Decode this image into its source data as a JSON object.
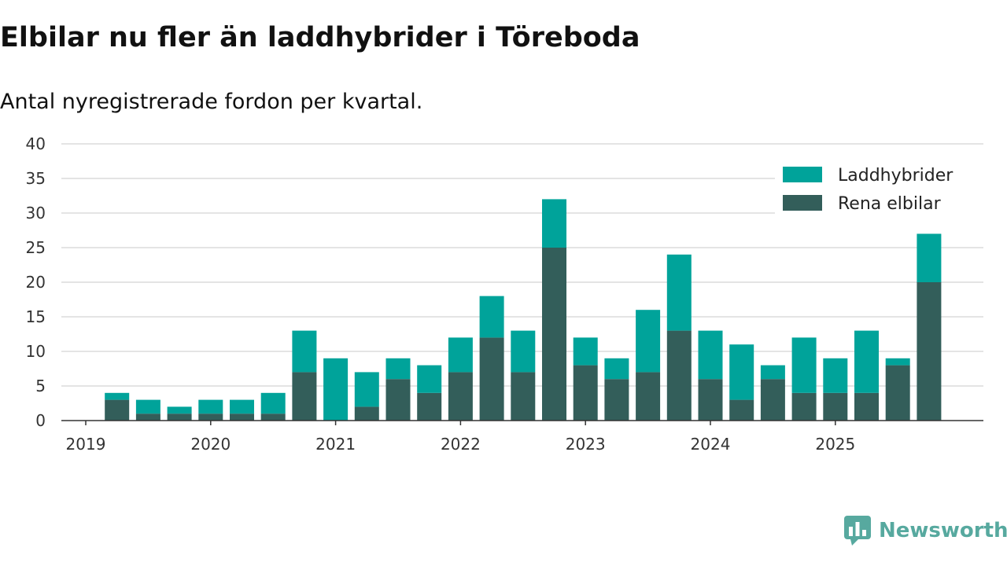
{
  "header": {
    "title": "Elbilar nu fler än laddhybrider i Töreboda",
    "subtitle": "Antal nyregistrerade fordon per kvartal."
  },
  "brand": {
    "name": "Newsworthy",
    "color": "#57a99f",
    "icon": "newsworthy-chart-bubble-icon"
  },
  "chart_data": {
    "type": "bar",
    "stacked": true,
    "title": "Elbilar nu fler än laddhybrider i Töreboda",
    "subtitle": "Antal nyregistrerade fordon per kvartal.",
    "xlabel": "",
    "ylabel": "",
    "ylim": [
      0,
      40
    ],
    "yticks": [
      0,
      5,
      10,
      15,
      20,
      25,
      30,
      35,
      40
    ],
    "grid": true,
    "legend_position": "top-right",
    "x_tick_labels": [
      "2019",
      "2020",
      "2021",
      "2022",
      "2023",
      "2024",
      "2025"
    ],
    "categories": [
      "2019 Q1",
      "2019 Q2",
      "2019 Q3",
      "2019 Q4",
      "2020 Q1",
      "2020 Q2",
      "2020 Q3",
      "2020 Q4",
      "2021 Q1",
      "2021 Q2",
      "2021 Q3",
      "2021 Q4",
      "2022 Q1",
      "2022 Q2",
      "2022 Q3",
      "2022 Q4",
      "2023 Q1",
      "2023 Q2",
      "2023 Q3",
      "2023 Q4",
      "2024 Q1",
      "2024 Q2",
      "2024 Q3",
      "2024 Q4",
      "2025 Q1",
      "2025 Q2",
      "2025 Q3",
      "2025 Q4"
    ],
    "series": [
      {
        "name": "Rena elbilar",
        "color": "#335e5a",
        "values": [
          0,
          3,
          1,
          1,
          1,
          1,
          1,
          7,
          0,
          2,
          6,
          4,
          7,
          12,
          7,
          25,
          8,
          6,
          7,
          13,
          6,
          3,
          6,
          4,
          4,
          4,
          8,
          20
        ]
      },
      {
        "name": "Laddhybrider",
        "color": "#00a39a",
        "values": [
          0,
          1,
          2,
          1,
          2,
          2,
          3,
          6,
          9,
          5,
          3,
          4,
          5,
          6,
          6,
          7,
          4,
          3,
          9,
          11,
          7,
          8,
          2,
          8,
          5,
          9,
          1,
          7
        ]
      }
    ],
    "legend_order": [
      "Laddhybrider",
      "Rena elbilar"
    ]
  }
}
